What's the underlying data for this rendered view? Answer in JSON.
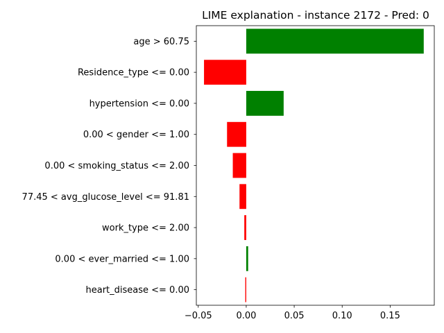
{
  "chart_data": {
    "type": "bar",
    "orientation": "horizontal",
    "title": "LIME explanation - instance 2172 - Pred: 0",
    "xlabel": "",
    "ylabel": "",
    "xlim": [
      -0.052,
      0.196
    ],
    "xticks": [
      -0.05,
      0.0,
      0.05,
      0.1,
      0.15
    ],
    "xtick_labels": [
      "−0.05",
      "0.00",
      "0.05",
      "0.10",
      "0.15"
    ],
    "grid": false,
    "legend": "none",
    "positive_color": "#008000",
    "negative_color": "#ff0000",
    "categories": [
      "age > 60.75",
      "Residence_type <= 0.00",
      "hypertension <= 0.00",
      "0.00 < gender <= 1.00",
      "0.00 < smoking_status <= 2.00",
      "77.45 < avg_glucose_level <= 91.81",
      "work_type <= 2.00",
      "0.00 < ever_married <= 1.00",
      "heart_disease <= 0.00"
    ],
    "values": [
      0.185,
      -0.044,
      0.039,
      -0.02,
      -0.014,
      -0.007,
      -0.002,
      0.002,
      -0.001
    ]
  }
}
